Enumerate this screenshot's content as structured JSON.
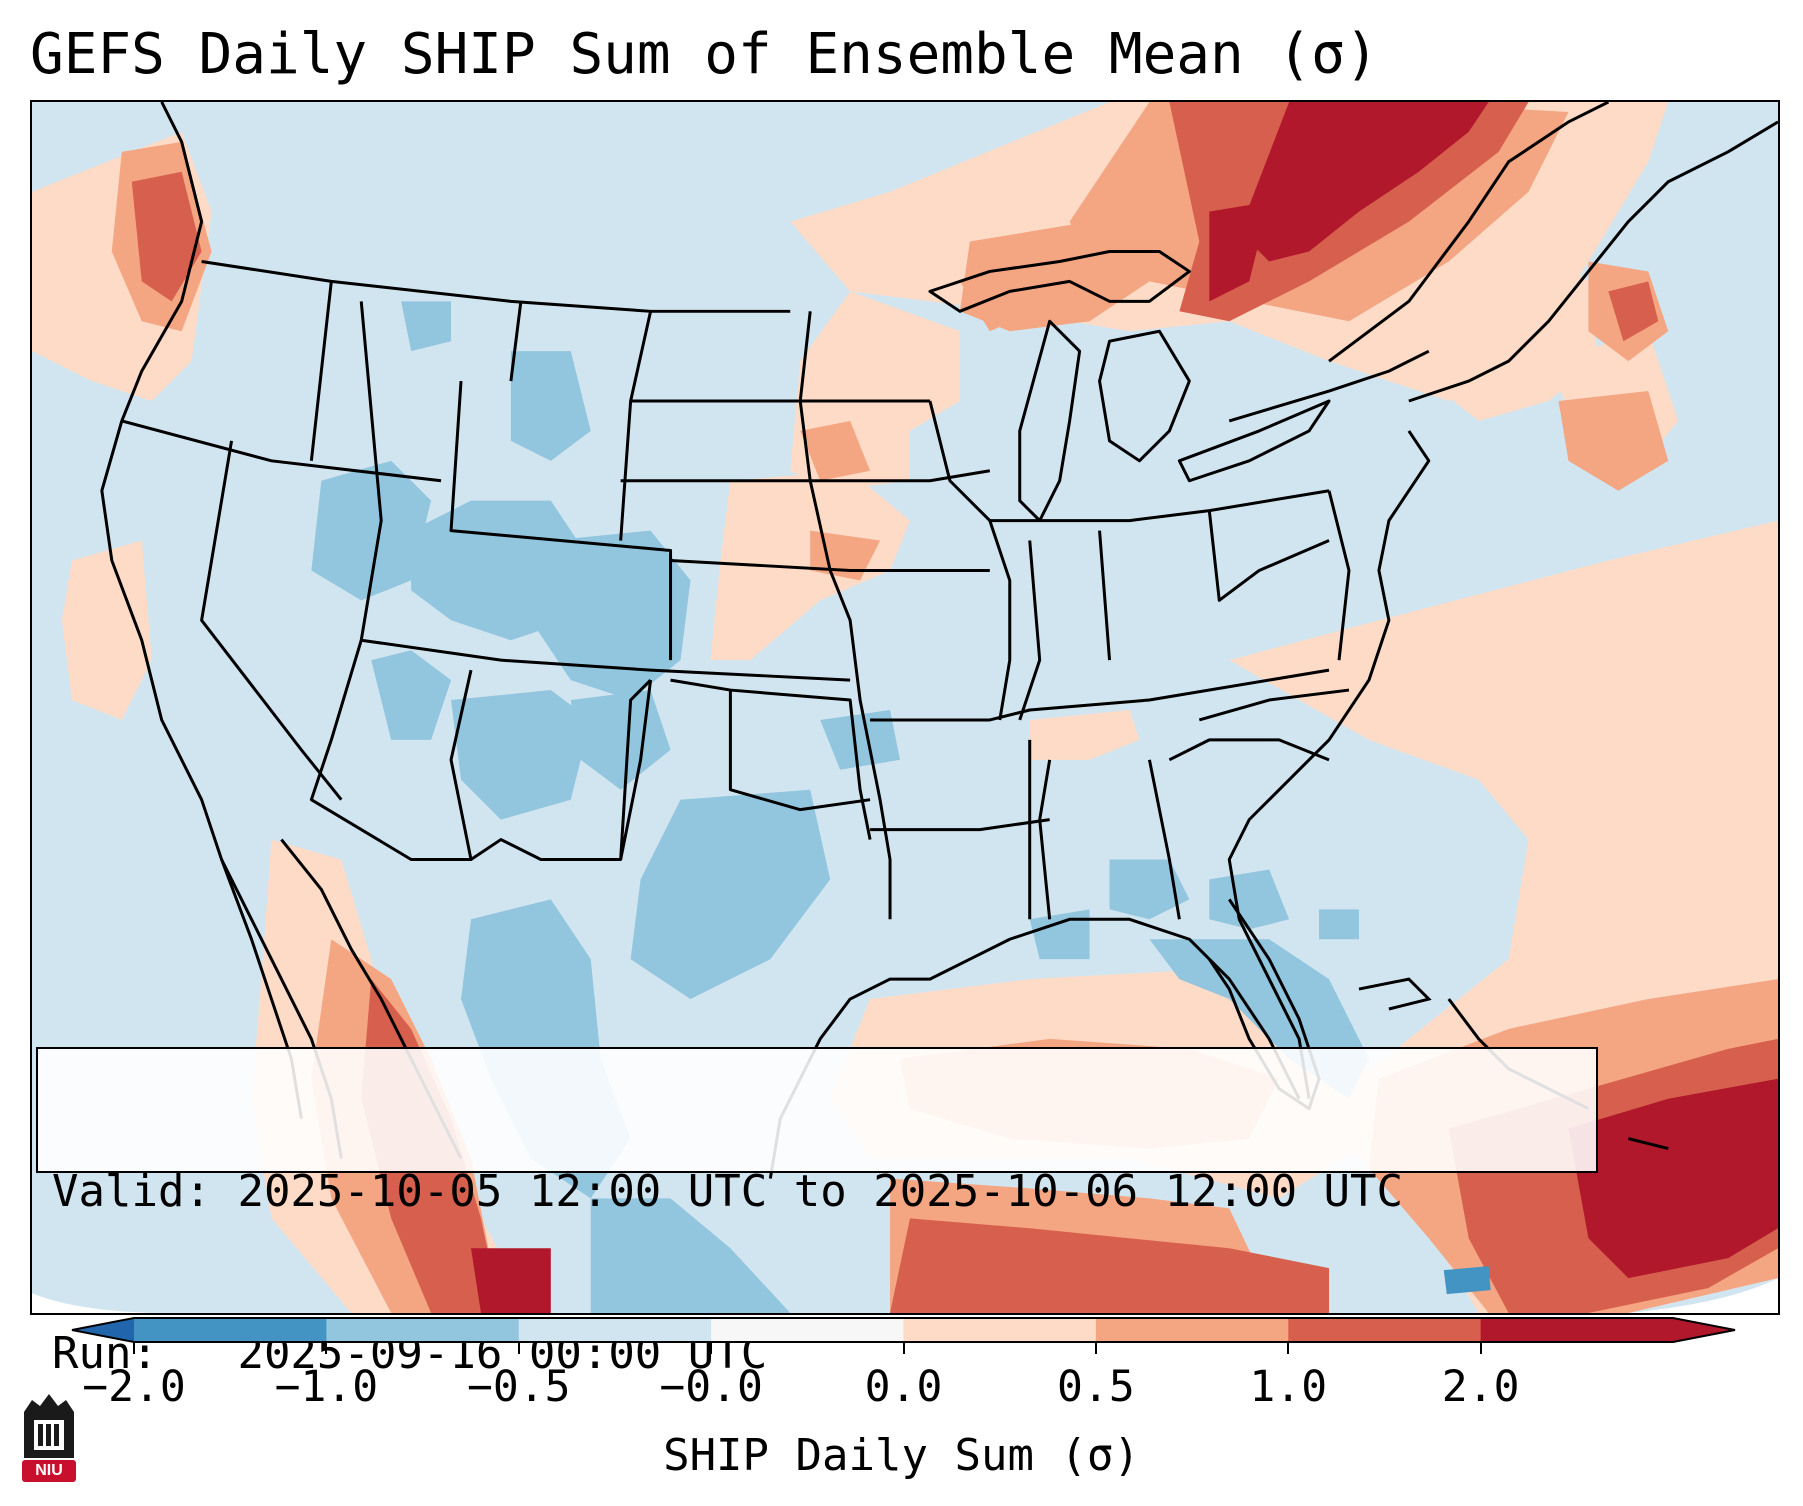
{
  "title": "GEFS Daily SHIP Sum of Ensemble Mean (σ)",
  "info": {
    "valid_label": "Valid:",
    "valid_value": "2025-10-05 12:00 UTC to 2025-10-06 12:00 UTC",
    "run_label": "Run:",
    "run_value": "2025-09-16 00:00 UTC"
  },
  "colorbar": {
    "label": "SHIP Daily Sum (σ)",
    "ticks": [
      "−2.0",
      "−1.0",
      "−0.5",
      "−0.0",
      "0.0",
      "0.5",
      "1.0",
      "2.0"
    ],
    "colors": [
      "#4393c3",
      "#92c5de",
      "#d1e5f0",
      "#f7f7f7",
      "#fddbc7",
      "#f4a582",
      "#d6604d",
      "#b2182b"
    ],
    "under_color": "#2166ac",
    "over_color": "#b2182b"
  },
  "logo_text": "NIU"
}
